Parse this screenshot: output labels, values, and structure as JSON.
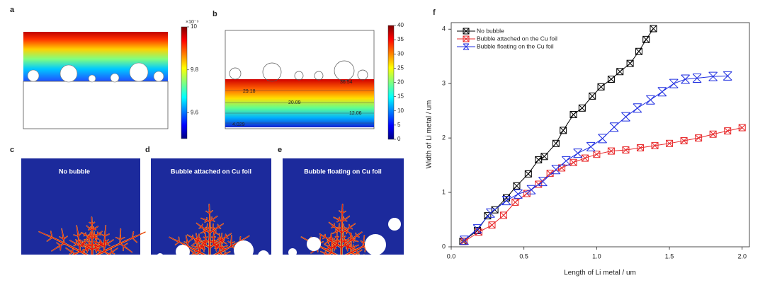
{
  "panels": {
    "a": {
      "label": "a",
      "colorbar": {
        "clim": [
          9.48,
          10
        ],
        "ticks": [
          9.6,
          9.8,
          10
        ],
        "exponent": "×10⁻⁹"
      }
    },
    "b": {
      "label": "b",
      "colorbar": {
        "clim": [
          0,
          40
        ],
        "ticks": [
          0,
          5,
          10,
          15,
          20,
          25,
          30,
          35,
          40
        ]
      },
      "contour_labels": [
        "29.18",
        "36.54",
        "20.09",
        "12.06",
        "4.029"
      ]
    },
    "c": {
      "label": "c",
      "title": "No bubble"
    },
    "d": {
      "label": "d",
      "title": "Bubble attached on Cu foil"
    },
    "e": {
      "label": "e",
      "title": "Bubble floating on Cu foil"
    }
  },
  "chart_data": {
    "type": "line",
    "label": "f",
    "x_label": "Length of Li metal / um",
    "y_label": "Width of Li metal / um",
    "xlim": [
      0,
      2.05
    ],
    "ylim": [
      0,
      4.12
    ],
    "xticks": [
      {
        "value": 0,
        "label": "0.0"
      },
      {
        "value": 0.5,
        "label": "0.5"
      },
      {
        "value": 1,
        "label": "1.0"
      },
      {
        "value": 1.5,
        "label": "1.5"
      },
      {
        "value": 2,
        "label": "2.0"
      }
    ],
    "yticks": [
      0,
      1,
      2,
      3,
      4
    ],
    "legend": "upper left",
    "series": [
      {
        "name": "No bubble",
        "color": "#000000",
        "marker": "box-x",
        "x": [
          0.08,
          0.18,
          0.25,
          0.3,
          0.38,
          0.45,
          0.53,
          0.6,
          0.64,
          0.72,
          0.77,
          0.84,
          0.9,
          0.97,
          1.03,
          1.1,
          1.16,
          1.23,
          1.29,
          1.34,
          1.39
        ],
        "values": [
          0.1,
          0.3,
          0.57,
          0.68,
          0.9,
          1.12,
          1.34,
          1.6,
          1.66,
          1.9,
          2.14,
          2.43,
          2.55,
          2.77,
          2.94,
          3.08,
          3.22,
          3.37,
          3.59,
          3.81,
          4.01
        ]
      },
      {
        "name": "Bubble attached on the Cu foil",
        "color": "#e8282a",
        "marker": "box-x",
        "x": [
          0.09,
          0.19,
          0.28,
          0.36,
          0.44,
          0.52,
          0.6,
          0.68,
          0.76,
          0.84,
          0.92,
          1.0,
          1.1,
          1.2,
          1.3,
          1.4,
          1.5,
          1.6,
          1.7,
          1.8,
          1.9,
          2.0
        ],
        "values": [
          0.1,
          0.27,
          0.4,
          0.58,
          0.82,
          0.98,
          1.15,
          1.35,
          1.45,
          1.55,
          1.63,
          1.7,
          1.76,
          1.78,
          1.82,
          1.86,
          1.9,
          1.95,
          2.0,
          2.07,
          2.13,
          2.19
        ]
      },
      {
        "name": "Bubble floating on the Cu foil",
        "color": "#1f2ee0",
        "marker": "star",
        "x": [
          0.09,
          0.18,
          0.27,
          0.38,
          0.46,
          0.55,
          0.63,
          0.72,
          0.79,
          0.87,
          0.96,
          1.04,
          1.12,
          1.2,
          1.28,
          1.37,
          1.45,
          1.53,
          1.61,
          1.69,
          1.8,
          1.9
        ],
        "values": [
          0.12,
          0.33,
          0.62,
          0.85,
          0.97,
          1.05,
          1.2,
          1.42,
          1.58,
          1.72,
          1.84,
          1.99,
          2.2,
          2.39,
          2.55,
          2.7,
          2.85,
          3.0,
          3.08,
          3.1,
          3.13,
          3.14
        ]
      }
    ]
  }
}
